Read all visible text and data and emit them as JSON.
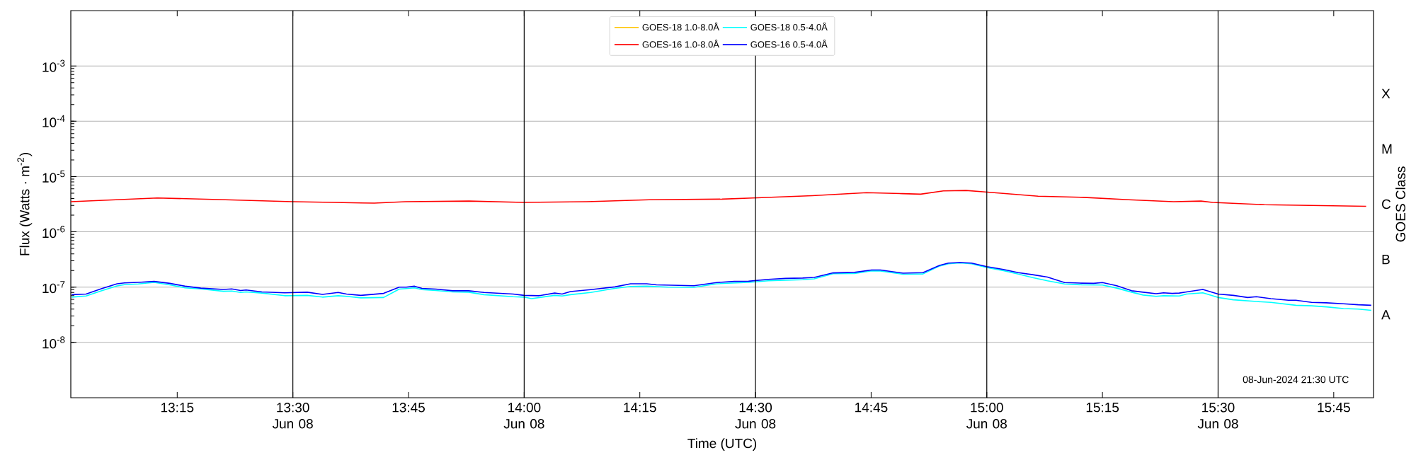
{
  "chart_data": {
    "type": "line",
    "xlabel": "Time (UTC)",
    "ylabel": "Flux (Watts · m$^{-2}$)",
    "y2label": "GOES Class",
    "xlim": [
      13.02,
      15.836
    ],
    "ylim": [
      1e-09,
      0.01
    ],
    "log": "y",
    "grid": "y",
    "legend": "top",
    "xticks": [
      {
        "value": 13.25,
        "label": "13:15"
      },
      {
        "value": 13.5,
        "label": "13:30 Jun 08"
      },
      {
        "value": 13.75,
        "label": "13:45"
      },
      {
        "value": 14.0,
        "label": "14:00 Jun 08"
      },
      {
        "value": 14.25,
        "label": "14:15"
      },
      {
        "value": 14.5,
        "label": "14:30 Jun 08"
      },
      {
        "value": 14.75,
        "label": "14:45"
      },
      {
        "value": 15.0,
        "label": "15:00 Jun 08"
      },
      {
        "value": 15.25,
        "label": "15:15"
      },
      {
        "value": 15.5,
        "label": "15:30 Jun 08"
      },
      {
        "value": 15.75,
        "label": "15:45"
      }
    ],
    "yticks": [
      {
        "value": 1e-08,
        "label": "10$^{-8}$"
      },
      {
        "value": 1e-07,
        "label": "10$^{-7}$"
      },
      {
        "value": 1e-06,
        "label": "10$^{-6}$"
      },
      {
        "value": 1e-05,
        "label": "10$^{-5}$"
      },
      {
        "value": 0.0001,
        "label": "10$^{-4}$"
      },
      {
        "value": 0.001,
        "label": "10$^{-3}$"
      }
    ],
    "ref_lines": [
      {
        "axis": "x",
        "value": 13.5,
        "color": "#000000"
      },
      {
        "axis": "x",
        "value": 14.0,
        "color": "#000000"
      },
      {
        "axis": "x",
        "value": 14.5,
        "color": "#000000"
      },
      {
        "axis": "x",
        "value": 15.0,
        "color": "#000000"
      },
      {
        "axis": "x",
        "value": 15.5,
        "color": "#000000"
      }
    ],
    "annotations": [
      "08-Jun-2024 21:30 UTC",
      "A",
      "B",
      "C",
      "M",
      "X"
    ],
    "series": [
      {
        "name": "GOES-18 1.0-8.0Å",
        "color": "#ffc400"
      },
      {
        "name": "GOES-16 1.0-8.0Å",
        "color": "#ff0000",
        "x": [
          13.02,
          13.207,
          13.354,
          13.5,
          13.588,
          13.676,
          13.744,
          13.881,
          13.998,
          14.135,
          14.271,
          14.428,
          14.494,
          14.623,
          14.74,
          14.818,
          14.857,
          14.906,
          14.955,
          14.992,
          15.111,
          15.209,
          15.307,
          15.404,
          15.463,
          15.488,
          15.6,
          15.82
        ],
        "values": [
          3.5e-06,
          4.1e-06,
          3.8e-06,
          3.5e-06,
          3.4e-06,
          3.3e-06,
          3.5e-06,
          3.6e-06,
          3.4e-06,
          3.5e-06,
          3.8e-06,
          3.9e-06,
          4.1e-06,
          4.5e-06,
          5.1e-06,
          4.9e-06,
          4.8e-06,
          5.5e-06,
          5.6e-06,
          5.3e-06,
          4.4e-06,
          4.2e-06,
          3.8e-06,
          3.5e-06,
          3.6e-06,
          3.4e-06,
          3.1e-06,
          2.9e-06
        ]
      },
      {
        "name": "GOES-18 0.5-4.0Å",
        "color": "#00ffff",
        "x": [
          13.022,
          13.053,
          13.087,
          13.12,
          13.136,
          13.166,
          13.2,
          13.234,
          13.267,
          13.301,
          13.35,
          13.368,
          13.387,
          13.399,
          13.433,
          13.482,
          13.531,
          13.564,
          13.598,
          13.616,
          13.647,
          13.696,
          13.73,
          13.745,
          13.763,
          13.779,
          13.809,
          13.846,
          13.88,
          13.913,
          13.976,
          14.0,
          14.016,
          14.066,
          14.082,
          14.1,
          14.144,
          14.196,
          14.23,
          14.265,
          14.311,
          14.367,
          14.416,
          14.485,
          14.528,
          14.602,
          14.627,
          14.668,
          14.714,
          14.751,
          14.77,
          14.819,
          14.862,
          14.898,
          14.917,
          14.942,
          14.967,
          15.0,
          15.036,
          15.068,
          15.099,
          15.131,
          15.168,
          15.206,
          15.25,
          15.281,
          15.313,
          15.338,
          15.366,
          15.382,
          15.416,
          15.432,
          15.467,
          15.5,
          15.533,
          15.583,
          15.614,
          15.668,
          15.702,
          15.734,
          15.771,
          15.803,
          15.831
        ],
        "values": [
          6.6e-08,
          6.9e-08,
          8.6e-08,
          1.05e-07,
          1.11e-07,
          1.14e-07,
          1.22e-07,
          1.1e-07,
          9.7e-08,
          9.3e-08,
          8.4e-08,
          8.5e-08,
          8e-08,
          8.2e-08,
          7.8e-08,
          7e-08,
          7.1e-08,
          6.6e-08,
          7e-08,
          6.8e-08,
          6.4e-08,
          6.5e-08,
          9.2e-08,
          9.4e-08,
          9.7e-08,
          9e-08,
          8.7e-08,
          8.2e-08,
          8.1e-08,
          7.3e-08,
          6.7e-08,
          6.6e-08,
          6.2e-08,
          7.1e-08,
          6.9e-08,
          7.3e-08,
          8e-08,
          9.5e-08,
          1.03e-07,
          1.04e-07,
          1e-07,
          9.9e-08,
          1.15e-07,
          1.22e-07,
          1.3e-07,
          1.36e-07,
          1.41e-07,
          1.75e-07,
          1.77e-07,
          1.97e-07,
          1.96e-07,
          1.71e-07,
          1.73e-07,
          2.41e-07,
          2.65e-07,
          2.75e-07,
          2.65e-07,
          2.27e-07,
          1.99e-07,
          1.72e-07,
          1.49e-07,
          1.3e-07,
          1.14e-07,
          1.1e-07,
          1.09e-07,
          9.6e-08,
          8.1e-08,
          7.2e-08,
          6.8e-08,
          7e-08,
          6.9e-08,
          7.5e-08,
          7.9e-08,
          6.5e-08,
          5.9e-08,
          5.5e-08,
          5.3e-08,
          4.7e-08,
          4.6e-08,
          4.4e-08,
          4.1e-08,
          4e-08,
          3.8e-08
        ]
      },
      {
        "name": "GOES-16 0.5-4.0Å",
        "color": "#0000ff",
        "x": [
          13.022,
          13.053,
          13.087,
          13.12,
          13.136,
          13.166,
          13.2,
          13.234,
          13.267,
          13.301,
          13.35,
          13.368,
          13.387,
          13.399,
          13.433,
          13.482,
          13.531,
          13.564,
          13.598,
          13.616,
          13.647,
          13.696,
          13.73,
          13.745,
          13.763,
          13.779,
          13.809,
          13.846,
          13.88,
          13.913,
          13.976,
          14.0,
          14.032,
          14.066,
          14.082,
          14.1,
          14.144,
          14.196,
          14.23,
          14.265,
          14.286,
          14.367,
          14.416,
          14.454,
          14.485,
          14.528,
          14.565,
          14.602,
          14.627,
          14.668,
          14.714,
          14.751,
          14.77,
          14.819,
          14.862,
          14.898,
          14.917,
          14.942,
          14.967,
          15.0,
          15.036,
          15.068,
          15.099,
          15.131,
          15.168,
          15.206,
          15.231,
          15.25,
          15.281,
          15.313,
          15.338,
          15.366,
          15.382,
          15.401,
          15.416,
          15.432,
          15.467,
          15.5,
          15.533,
          15.564,
          15.583,
          15.614,
          15.652,
          15.668,
          15.702,
          15.734,
          15.771,
          15.803,
          15.831
        ],
        "values": [
          7.3e-08,
          7.5e-08,
          9.4e-08,
          1.15e-07,
          1.19e-07,
          1.22e-07,
          1.27e-07,
          1.17e-07,
          1.04e-07,
          9.6e-08,
          9.1e-08,
          9.3e-08,
          8.7e-08,
          8.9e-08,
          8.2e-08,
          7.9e-08,
          8.1e-08,
          7.4e-08,
          8e-08,
          7.5e-08,
          7.1e-08,
          7.7e-08,
          1e-07,
          1e-07,
          1.04e-07,
          9.5e-08,
          9.2e-08,
          8.6e-08,
          8.6e-08,
          8e-08,
          7.5e-08,
          7.1e-08,
          7e-08,
          7.8e-08,
          7.5e-08,
          8.3e-08,
          9e-08,
          1.01e-07,
          1.15e-07,
          1.15e-07,
          1.1e-07,
          1.06e-07,
          1.21e-07,
          1.27e-07,
          1.28e-07,
          1.38e-07,
          1.44e-07,
          1.46e-07,
          1.5e-07,
          1.81e-07,
          1.85e-07,
          2.04e-07,
          2.04e-07,
          1.79e-07,
          1.83e-07,
          2.47e-07,
          2.72e-07,
          2.78e-07,
          2.72e-07,
          2.35e-07,
          2.09e-07,
          1.83e-07,
          1.68e-07,
          1.52e-07,
          1.21e-07,
          1.18e-07,
          1.17e-07,
          1.21e-07,
          1.06e-07,
          8.6e-08,
          8.1e-08,
          7.6e-08,
          7.9e-08,
          7.7e-08,
          7.8e-08,
          8.2e-08,
          9.1e-08,
          7.5e-08,
          7.1e-08,
          6.5e-08,
          6.7e-08,
          6.2e-08,
          5.8e-08,
          5.8e-08,
          5.3e-08,
          5.2e-08,
          5e-08,
          4.8e-08,
          4.7e-08
        ]
      }
    ]
  }
}
